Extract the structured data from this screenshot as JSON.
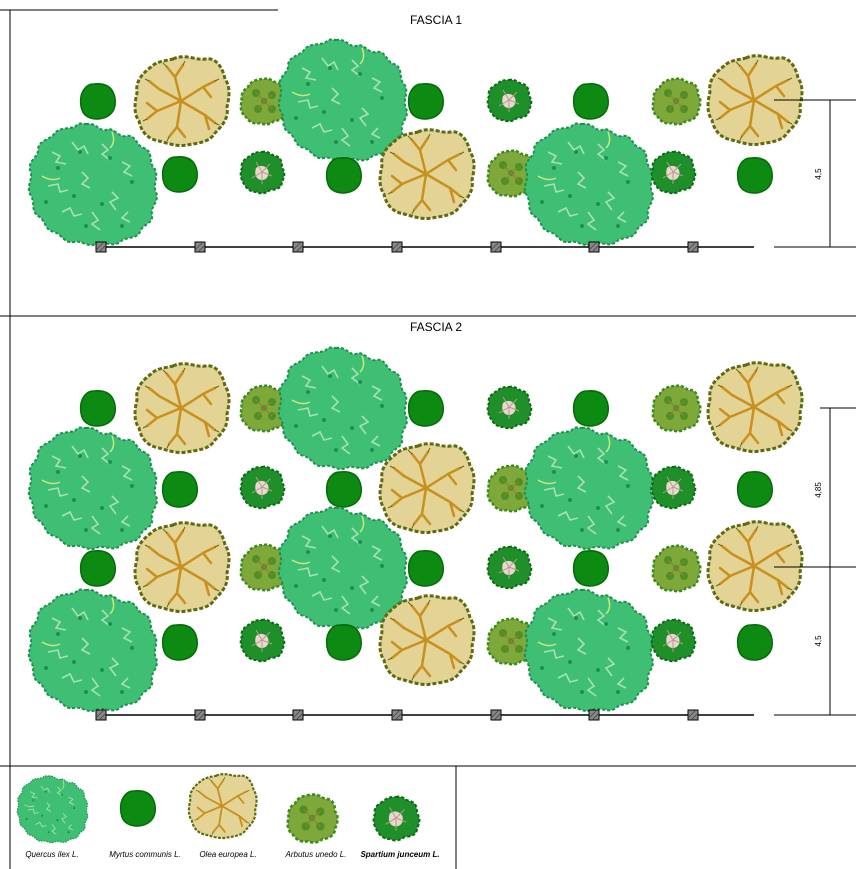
{
  "panels": [
    {
      "id": "fascia-1",
      "title": "FASCIA 1",
      "dimensions": [
        "4,5"
      ]
    },
    {
      "id": "fascia-2",
      "title": "FASCIA 2",
      "dimensions": [
        "4,85",
        "4,5"
      ]
    }
  ],
  "legend": [
    {
      "key": "quercus",
      "label": "Quercus ilex L.",
      "icon": "quercus-ilex-icon"
    },
    {
      "key": "myrtus",
      "label": "Myrtus communis L.",
      "icon": "myrtus-communis-icon"
    },
    {
      "key": "olea",
      "label": "Olea europea L.",
      "icon": "olea-europea-icon"
    },
    {
      "key": "arbutus",
      "label": "Arbutus unedo L.",
      "icon": "arbutus-unedo-icon"
    },
    {
      "key": "spartium",
      "label": "Spartium junceum L.",
      "icon": "spartium-junceum-icon"
    }
  ],
  "colors": {
    "quercus_fill": "#3fbf73",
    "quercus_edge": "#1e8f4f",
    "quercus_light": "#a8e0b5",
    "myrtus_fill": "#0c8a12",
    "myrtus_edge": "#066b0b",
    "olea_fill": "#d9c47a",
    "olea_edge": "#5e6b12",
    "olea_branch": "#c8901e",
    "arbutus_fill": "#7ea83a",
    "arbutus_dark": "#3d8a1f",
    "spartium_fill": "#1f8f2a",
    "spartium_center": "#e8d8d0",
    "post_fill": "#888888",
    "line": "#000000"
  }
}
